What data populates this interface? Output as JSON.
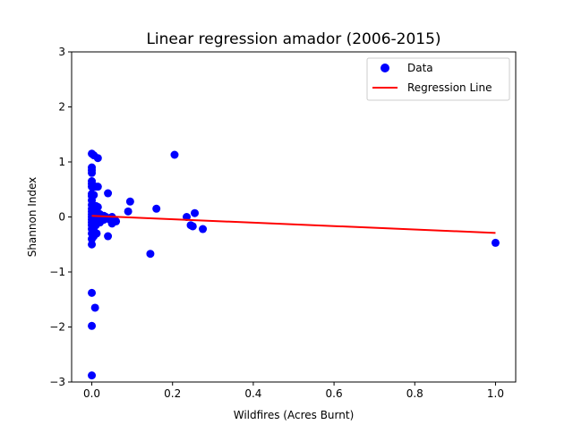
{
  "chart_data": {
    "type": "scatter",
    "title": "Linear regression amador (2006-2015)",
    "xlabel": "Wildfires (Acres Burnt)",
    "ylabel": "Shannon Index",
    "xlim": [
      -0.05,
      1.05
    ],
    "ylim": [
      -3,
      3
    ],
    "x_ticks": [
      0.0,
      0.2,
      0.4,
      0.6,
      0.8,
      1.0
    ],
    "x_tick_labels": [
      "0.0",
      "0.2",
      "0.4",
      "0.6",
      "0.8",
      "1.0"
    ],
    "y_ticks": [
      -3,
      -2,
      -1,
      0,
      1,
      2,
      3
    ],
    "y_tick_labels": [
      "−3",
      "−2",
      "−1",
      "0",
      "1",
      "2",
      "3"
    ],
    "grid": false,
    "legend_position": "top-right",
    "series": [
      {
        "name": "Data",
        "kind": "scatter",
        "color": "#0000ff",
        "x": [
          0.0,
          0.0,
          0.0,
          0.0,
          0.0,
          0.0,
          0.0,
          0.0,
          0.0,
          0.0,
          0.0,
          0.0,
          0.0,
          0.0,
          0.0,
          0.0,
          0.0,
          0.0,
          0.0,
          0.0,
          0.0,
          0.0,
          0.0,
          0.0,
          0.0,
          0.005,
          0.005,
          0.005,
          0.005,
          0.005,
          0.005,
          0.005,
          0.005,
          0.005,
          0.008,
          0.01,
          0.01,
          0.01,
          0.01,
          0.01,
          0.01,
          0.012,
          0.015,
          0.015,
          0.015,
          0.015,
          0.02,
          0.02,
          0.02,
          0.025,
          0.03,
          0.03,
          0.035,
          0.04,
          0.04,
          0.045,
          0.05,
          0.05,
          0.055,
          0.06,
          0.09,
          0.095,
          0.145,
          0.16,
          0.205,
          0.235,
          0.245,
          0.25,
          0.255,
          0.275,
          1.0
        ],
        "y": [
          1.15,
          0.9,
          0.85,
          0.8,
          0.65,
          0.6,
          0.55,
          0.42,
          0.38,
          0.3,
          0.22,
          0.15,
          0.1,
          0.05,
          0.0,
          -0.05,
          -0.1,
          -0.15,
          -0.22,
          -0.3,
          -0.4,
          -0.5,
          -1.38,
          -1.98,
          -2.88,
          1.12,
          0.55,
          0.4,
          0.2,
          0.1,
          0.0,
          -0.1,
          -0.2,
          -0.35,
          -1.65,
          0.55,
          0.2,
          0.1,
          0.05,
          -0.05,
          -0.15,
          -0.3,
          1.07,
          0.55,
          0.18,
          0.0,
          0.05,
          -0.05,
          -0.1,
          0.0,
          0.02,
          -0.05,
          0.0,
          0.43,
          -0.35,
          -0.05,
          -0.12,
          0.0,
          -0.05,
          -0.08,
          0.1,
          0.28,
          -0.67,
          0.15,
          1.13,
          0.0,
          -0.15,
          -0.17,
          0.07,
          -0.22,
          -0.47
        ]
      },
      {
        "name": "Regression Line",
        "kind": "line",
        "color": "#ff0000",
        "x": [
          0.0,
          1.0
        ],
        "y": [
          0.02,
          -0.29
        ]
      }
    ]
  }
}
